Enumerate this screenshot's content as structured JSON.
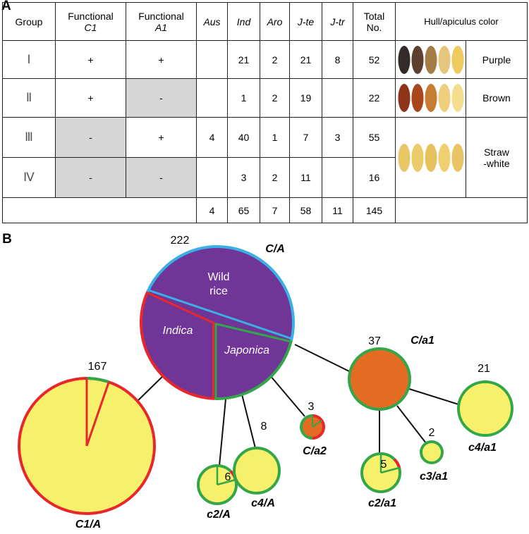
{
  "panels": {
    "a": "A",
    "b": "B"
  },
  "table": {
    "header": {
      "group": "Group",
      "c1": [
        "Functional",
        "C1"
      ],
      "a1": [
        "Functional",
        "A1"
      ],
      "aus": "Aus",
      "ind": "Ind",
      "aro": "Aro",
      "jte": "J-te",
      "jtr": "J-tr",
      "total": [
        "Total",
        "No."
      ],
      "color": "Hull/apiculus color"
    },
    "rows": [
      {
        "group": "Ⅰ",
        "c1": "+",
        "a1": "+",
        "ind": "21",
        "aro": "2",
        "jte": "21",
        "jtr": "8",
        "total": "52",
        "color": "Purple"
      },
      {
        "group": "Ⅱ",
        "c1": "+",
        "a1": "-",
        "ind": "1",
        "aro": "2",
        "jte": "19",
        "total": "22",
        "color": "Brown"
      },
      {
        "group": "Ⅲ",
        "c1": "-",
        "a1": "+",
        "aus": "4",
        "ind": "40",
        "aro": "1",
        "jte": "7",
        "jtr": "3",
        "total": "55",
        "color": "Straw\n-white"
      },
      {
        "group": "Ⅳ",
        "c1": "-",
        "a1": "-",
        "ind": "3",
        "aro": "2",
        "jte": "11",
        "total": "16"
      }
    ],
    "totals": {
      "aus": "4",
      "ind": "65",
      "aro": "7",
      "jte": "58",
      "jtr": "11",
      "total": "145"
    }
  },
  "network": {
    "ca": {
      "count": "222",
      "label": "C/A",
      "slices": {
        "wild": [
          "Wild",
          "rice"
        ],
        "indica": "Indica",
        "japonica": "Japonica"
      }
    },
    "c1a": {
      "count": "167",
      "label": "C1/A"
    },
    "c2a": {
      "count": "6",
      "label": "c2/A"
    },
    "c4a": {
      "count": "8",
      "label": "c4/A"
    },
    "ca2": {
      "count": "3",
      "label": "C/a2"
    },
    "ca1": {
      "count": "37",
      "label": "C/a1"
    },
    "c2a1": {
      "count": "5",
      "label": "c2/a1"
    },
    "c3a1": {
      "count": "2",
      "label": "c3/a1"
    },
    "c4a1": {
      "count": "21",
      "label": "c4/a1"
    }
  }
}
